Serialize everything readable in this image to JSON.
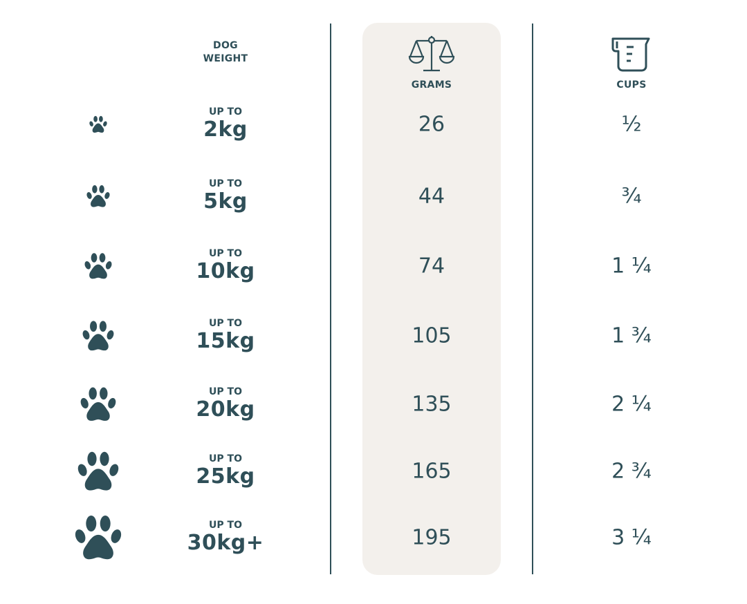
{
  "colors": {
    "text": "#2f4f58",
    "grams_panel": "#f3f0ec"
  },
  "headers": {
    "weight": [
      "DOG",
      "WEIGHT"
    ],
    "grams": "GRAMS",
    "grams_icon": "scale-icon",
    "cups": "CUPS",
    "cups_icon": "measuring-cup-icon"
  },
  "rows": [
    {
      "prefix": "UP TO",
      "weight": "2kg",
      "grams": "26",
      "cups": "½"
    },
    {
      "prefix": "UP TO",
      "weight": "5kg",
      "grams": "44",
      "cups": "¾"
    },
    {
      "prefix": "UP TO",
      "weight": "10kg",
      "grams": "74",
      "cups": "1 ¼"
    },
    {
      "prefix": "UP TO",
      "weight": "15kg",
      "grams": "105",
      "cups": "1 ¾"
    },
    {
      "prefix": "UP TO",
      "weight": "20kg",
      "grams": "135",
      "cups": "2 ¼"
    },
    {
      "prefix": "UP TO",
      "weight": "25kg",
      "grams": "165",
      "cups": "2 ¾"
    },
    {
      "prefix": "UP TO",
      "weight": "30kg+",
      "grams": "195",
      "cups": "3 ¼"
    }
  ]
}
